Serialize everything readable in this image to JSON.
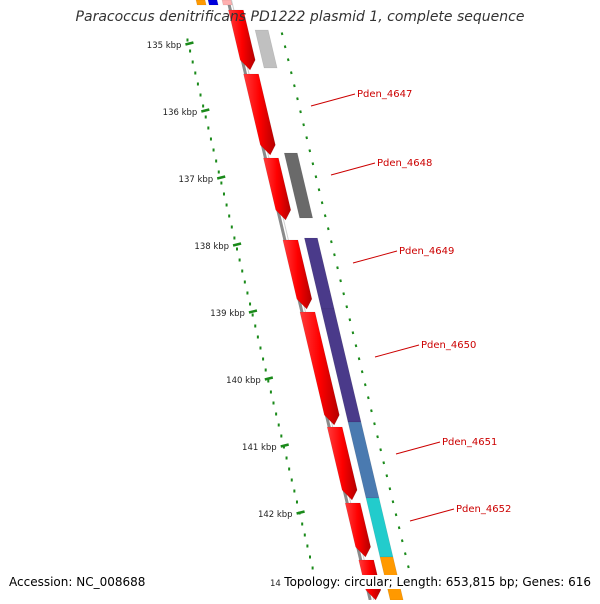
{
  "title": "Paracoccus denitrificans PD1222 plasmid 1, complete sequence",
  "footer": {
    "accession": "Accession: NC_008688",
    "summary": "Topology: circular; Length: 653,815 bp; Genes: 616"
  },
  "ruler": {
    "start_kbp": 135,
    "end_kbp": 142,
    "partial_label": "14",
    "labels": [
      "135 kbp",
      "136 kbp",
      "137 kbp",
      "138 kbp",
      "139 kbp",
      "140 kbp",
      "141 kbp",
      "142 kbp"
    ]
  },
  "genes": [
    {
      "name": "Pden_4647",
      "color": "#dd0000"
    },
    {
      "name": "Pden_4648",
      "color": "#dd0000"
    },
    {
      "name": "Pden_4649",
      "color": "#dd0000"
    },
    {
      "name": "Pden_4650",
      "color": "#dd0000"
    },
    {
      "name": "Pden_4651",
      "color": "#dd0000"
    },
    {
      "name": "Pden_4652",
      "color": "#dd0000"
    }
  ],
  "colors": {
    "backbone": "#8a8a8a",
    "ruler": "#1a8a1a",
    "cds": "#ff0000",
    "label": "#cc0000",
    "cog_gray_light": "#c0c0c0",
    "cog_gray_dark": "#6a6a6a",
    "cog_purple": "#4a3a8a",
    "cog_steel": "#4a7ab0",
    "cog_cyan": "#22cccc",
    "cog_orange": "#ff9900",
    "cog_blue": "#0000dd"
  }
}
